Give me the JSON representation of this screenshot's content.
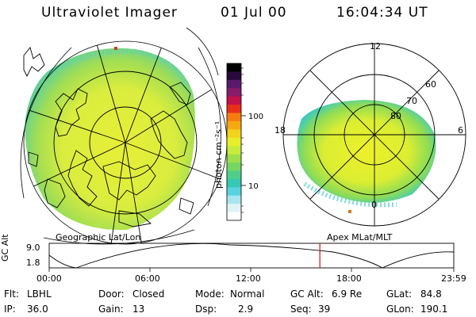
{
  "header": {
    "instrument": "Ultraviolet Imager",
    "date": "01 Jul 00",
    "time": "16:04:34 UT"
  },
  "colorbar": {
    "unit_label": "photon cm⁻²s⁻¹",
    "ticks": [
      "100",
      "10"
    ],
    "colors": [
      "#000000",
      "#2a0a3a",
      "#5a1a6a",
      "#8a1a6a",
      "#c2124a",
      "#e83018",
      "#f57d10",
      "#f7a80f",
      "#f3d21c",
      "#e8ee2a",
      "#c7ec3c",
      "#9ee04c",
      "#76d760",
      "#4fce8a",
      "#36c7b5",
      "#5ad2e0",
      "#a7e6ef",
      "#dff3f6",
      "#ffffff"
    ]
  },
  "left_map": {
    "caption": "Geographic Lat/Lon"
  },
  "right_map": {
    "caption": "Apex  MLat/MLT",
    "mlt_labels": {
      "top": "12",
      "left": "18",
      "right": "6",
      "bottom": "0"
    },
    "lat_labels": [
      "60",
      "70",
      "80"
    ]
  },
  "timeline": {
    "ylabel": "GC Alt",
    "y_ticks": [
      "9.0",
      "1.8"
    ],
    "x_ticks": [
      "00:00",
      "06:00",
      "12:00",
      "18:00",
      "23:59"
    ],
    "current_time_fraction": 0.669,
    "cursor_color": "#cc1111"
  },
  "status": {
    "flt_label": "Flt:",
    "flt_value": "LBHL",
    "ip_label": "IP:",
    "ip_value": "36.0",
    "door_label": "Door:",
    "door_value": "Closed",
    "gain_label": "Gain:",
    "gain_value": "13",
    "mode_label": "Mode:",
    "mode_value": "Normal",
    "dsp_label": "Dsp:",
    "dsp_value": "2.9",
    "gcalt_label": "GC Alt:",
    "gcalt_value": "6.9 Re",
    "seq_label": "Seq:",
    "seq_value": "39",
    "glat_label": "GLat:",
    "glat_value": "84.8",
    "glon_label": "GLon:",
    "glon_value": "190.1"
  }
}
